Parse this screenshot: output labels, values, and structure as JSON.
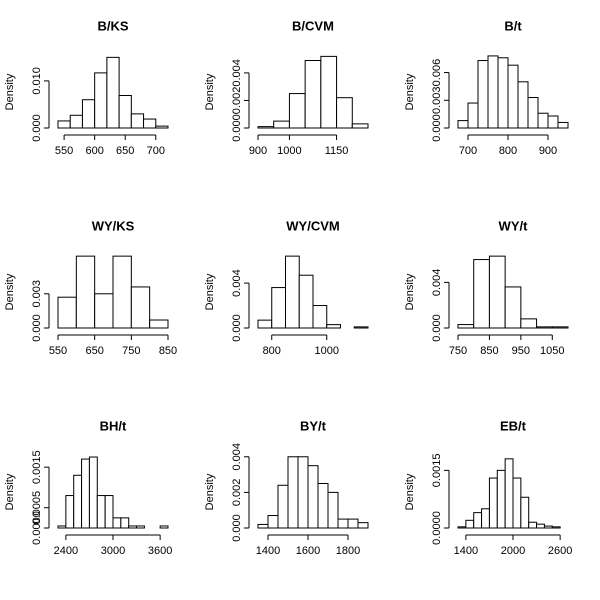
{
  "chart_data": [
    {
      "type": "histogram",
      "title": "B/KS",
      "ylabel": "Density",
      "color": "#ffffff",
      "bins": [
        540,
        560,
        580,
        600,
        620,
        640,
        660,
        680,
        700,
        720
      ],
      "values": [
        0.0015,
        0.0027,
        0.006,
        0.0117,
        0.015,
        0.0069,
        0.003,
        0.0019,
        0.0004
      ],
      "xlim": [
        540,
        720
      ],
      "ylim": [
        0,
        0.0155
      ],
      "xticks": [
        550,
        600,
        650,
        700
      ],
      "yticks": [
        {
          "value": 0,
          "label": "0.000"
        },
        {
          "value": 0.01,
          "label": "0.010"
        }
      ]
    },
    {
      "type": "histogram",
      "title": "B/CVM",
      "ylabel": "Density",
      "color": "#ffffff",
      "bins": [
        900,
        950,
        1000,
        1050,
        1100,
        1150,
        1200,
        1250
      ],
      "values": [
        0.0001,
        0.0005,
        0.0025,
        0.0049,
        0.0052,
        0.0022,
        0.0003
      ],
      "xlim": [
        900,
        1250
      ],
      "ylim": [
        0,
        0.0053
      ],
      "xticks": [
        900,
        1000,
        1150
      ],
      "yticks": [
        {
          "value": 0,
          "label": "0.000"
        },
        0.002,
        0.004
      ]
    },
    {
      "type": "histogram",
      "title": "B/t",
      "ylabel": "Density",
      "color": "#ffffff",
      "bins": [
        675,
        700,
        725,
        750,
        775,
        800,
        825,
        850,
        875,
        900,
        925,
        950
      ],
      "values": [
        0.0008,
        0.0027,
        0.0073,
        0.0078,
        0.0076,
        0.0068,
        0.005,
        0.0033,
        0.0016,
        0.0013,
        0.0006
      ],
      "xlim": [
        675,
        950
      ],
      "ylim": [
        0,
        0.0079
      ],
      "xticks": [
        700,
        800,
        900
      ],
      "yticks": [
        {
          "value": 0,
          "label": "0.000"
        },
        0.003,
        0.006
      ]
    },
    {
      "type": "histogram",
      "title": "WY/KS",
      "ylabel": "Density",
      "color": "#ffffff",
      "bins": [
        550,
        600,
        650,
        700,
        750,
        800,
        850
      ],
      "values": [
        0.0027,
        0.0063,
        0.003,
        0.0063,
        0.0036,
        0.0007
      ],
      "xlim": [
        550,
        850
      ],
      "ylim": [
        0,
        0.0064
      ],
      "xticks": [
        550,
        650,
        750,
        850
      ],
      "yticks": [
        {
          "value": 0,
          "label": "0.000"
        },
        0.003
      ]
    },
    {
      "type": "histogram",
      "title": "WY/CVM",
      "ylabel": "Density",
      "color": "#ffffff",
      "bins": [
        750,
        800,
        850,
        900,
        950,
        1000,
        1050,
        1100,
        1150
      ],
      "values": [
        0.0007,
        0.0036,
        0.0064,
        0.0047,
        0.002,
        0.0003,
        0,
        0.0001
      ],
      "xlim": [
        750,
        1150
      ],
      "ylim": [
        0,
        0.0065
      ],
      "xticks": [
        800,
        1000
      ],
      "yticks": [
        {
          "value": 0,
          "label": "0.000"
        },
        0.004
      ]
    },
    {
      "type": "histogram",
      "title": "WY/t",
      "ylabel": "Density",
      "color": "#ffffff",
      "bins": [
        750,
        800,
        850,
        900,
        950,
        1000,
        1050,
        1100
      ],
      "values": [
        0.0003,
        0.006,
        0.0063,
        0.0036,
        0.0008,
        0.0001,
        0.0001
      ],
      "xlim": [
        750,
        1100
      ],
      "ylim": [
        0,
        0.0064
      ],
      "xticks": [
        750,
        850,
        950,
        1050
      ],
      "yticks": [
        {
          "value": 0,
          "label": "0.000"
        },
        0.004
      ]
    },
    {
      "type": "histogram",
      "title": "BH/t",
      "ylabel": "Density",
      "color": "#ffffff",
      "bins": [
        2300,
        2400,
        2500,
        2600,
        2700,
        2800,
        2900,
        3000,
        3100,
        3200,
        3300,
        3400,
        3500,
        3600,
        3700
      ],
      "values": [
        5e-05,
        0.0008,
        0.0013,
        0.0017,
        0.00175,
        0.0008,
        0.0008,
        0.00025,
        0.00025,
        5e-05,
        5e-05,
        0,
        0,
        5e-05
      ],
      "xlim": [
        2300,
        3700
      ],
      "ylim": [
        0,
        0.0018
      ],
      "xticks": [
        2400,
        3000,
        3600
      ],
      "yticks": [
        {
          "value": 0,
          "label": "0.0000"
        },
        0.0005,
        0.0015
      ]
    },
    {
      "type": "histogram",
      "title": "BY/t",
      "ylabel": "Density",
      "color": "#ffffff",
      "bins": [
        1350,
        1400,
        1450,
        1500,
        1550,
        1600,
        1650,
        1700,
        1750,
        1800,
        1850,
        1900
      ],
      "values": [
        0.0002,
        0.0007,
        0.0024,
        0.004,
        0.004,
        0.0035,
        0.0025,
        0.002,
        0.0005,
        0.0005,
        0.0003
      ],
      "xlim": [
        1350,
        1900
      ],
      "ylim": [
        0,
        0.0041
      ],
      "xticks": [
        1400,
        1600,
        1800
      ],
      "yticks": [
        {
          "value": 0,
          "label": "0.000"
        },
        0.002,
        0.004
      ]
    },
    {
      "type": "histogram",
      "title": "EB/t",
      "ylabel": "Density",
      "color": "#ffffff",
      "bins": [
        1300,
        1400,
        1500,
        1600,
        1700,
        1800,
        1900,
        2000,
        2100,
        2200,
        2300,
        2400,
        2500,
        2600,
        2700
      ],
      "values": [
        3e-05,
        0.0002,
        0.0004,
        0.0005,
        0.0013,
        0.0015,
        0.0018,
        0.0013,
        0.0008,
        0.00015,
        0.0001,
        5e-05,
        3e-05,
        0
      ],
      "xlim": [
        1300,
        2700
      ],
      "ylim": [
        0,
        0.0019
      ],
      "xticks": [
        1400,
        2000,
        2600
      ],
      "yticks": [
        {
          "value": 0,
          "label": "0.0000"
        },
        0.0015
      ]
    }
  ]
}
